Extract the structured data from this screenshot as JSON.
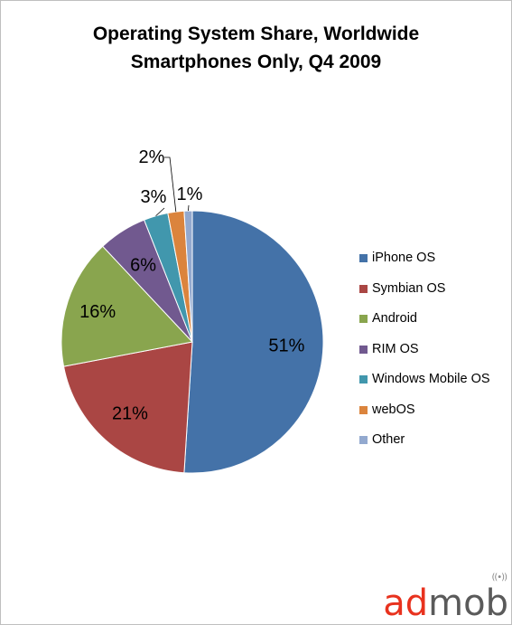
{
  "chart_data": {
    "type": "pie",
    "title": "Operating System Share, Worldwide",
    "subtitle": "Smartphones Only, Q4 2009",
    "categories": [
      "iPhone OS",
      "Symbian OS",
      "Android",
      "RIM OS",
      "Windows Mobile OS",
      "webOS",
      "Other"
    ],
    "values": [
      51,
      21,
      16,
      6,
      3,
      2,
      1
    ],
    "data_labels": [
      "51%",
      "21%",
      "16%",
      "6%",
      "3%",
      "2%",
      "1%"
    ],
    "colors": [
      "#4472a8",
      "#aa4644",
      "#89a54e",
      "#71598f",
      "#4197ad",
      "#db843d",
      "#93a9cf"
    ],
    "legend_position": "right",
    "start_angle": "12 o'clock, clockwise"
  },
  "logo": {
    "name": "admob-logo",
    "text_ad": "ad",
    "text_mob": "mob",
    "accent_color": "#e8321e",
    "text_color": "#5a5a5a"
  }
}
